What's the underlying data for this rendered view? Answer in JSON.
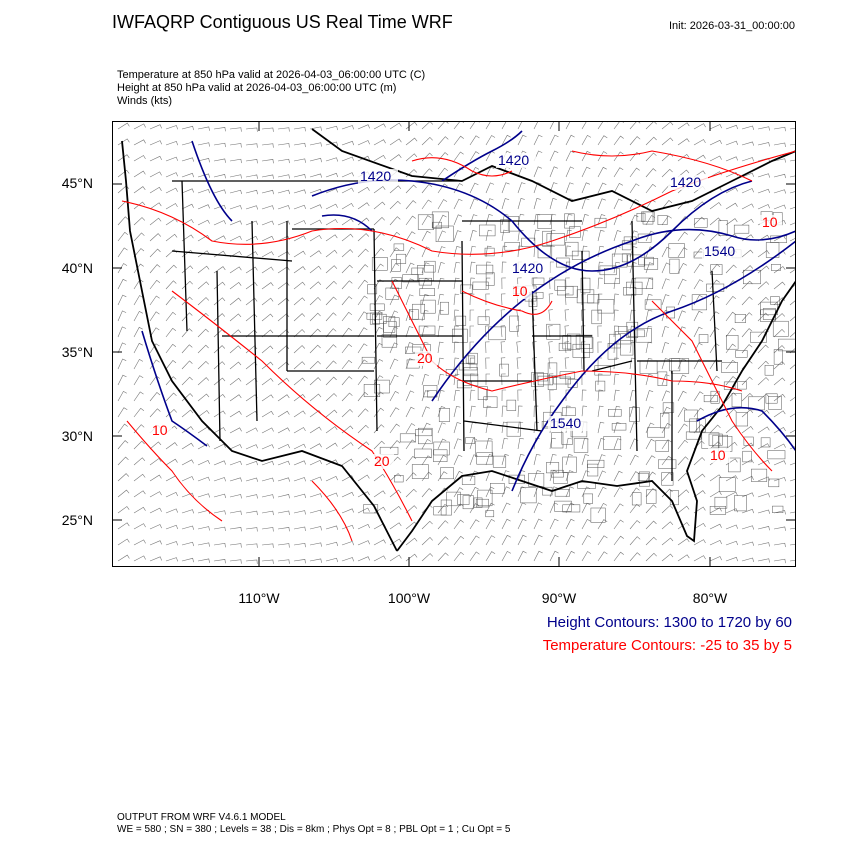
{
  "header": {
    "title": "IWFAQRP Contiguous US Real Time WRF",
    "init": "Init: 2026-03-31_00:00:00"
  },
  "subtitle": {
    "line1": "Temperature at 850 hPa valid at 2026-04-03_06:00:00 UTC   (C)",
    "line2": "Height at 850 hPa valid at 2026-04-03_06:00:00 UTC   (m)",
    "line3": "Winds   (kts)"
  },
  "map": {
    "lat_labels": [
      "45°N",
      "40°N",
      "35°N",
      "30°N",
      "25°N"
    ],
    "lon_labels": [
      "110°W",
      "100°W",
      "90°W",
      "80°W"
    ],
    "height_contour_labels": [
      "1420",
      "1420",
      "1420",
      "1420",
      "1540",
      "1540"
    ],
    "temp_contour_labels": [
      "10",
      "10",
      "20",
      "20",
      "10",
      "10"
    ],
    "colors": {
      "height": "#00008b",
      "temperature": "#ff0000",
      "states": "#000000",
      "counties": "#555555"
    }
  },
  "legend": {
    "height": "Height Contours: 1300 to 1720 by 60",
    "temperature": "Temperature Contours: -25 to 35 by 5"
  },
  "footer": {
    "line1": "OUTPUT FROM WRF V4.6.1 MODEL",
    "line2": "WE = 580 ; SN = 380 ; Levels = 38 ; Dis = 8km ; Phys Opt = 8 ; PBL Opt = 1 ; Cu Opt = 5"
  }
}
